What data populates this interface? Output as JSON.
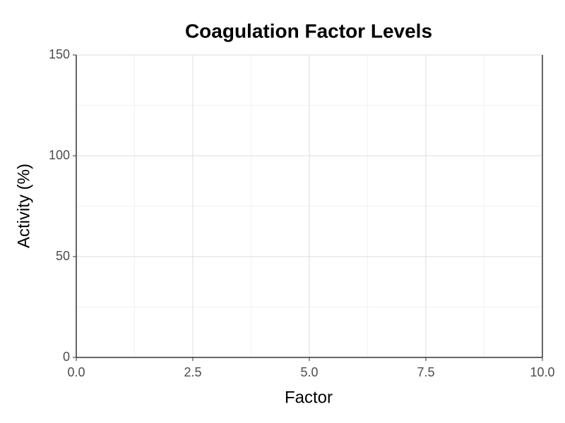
{
  "chart_data": {
    "type": "scatter",
    "title": "Coagulation Factor Levels",
    "xlabel": "Factor",
    "ylabel": "Activity (%)",
    "xlim": [
      0,
      10
    ],
    "ylim": [
      0,
      150
    ],
    "xticks": [
      {
        "value": 0,
        "label": "0.0"
      },
      2.5,
      {
        "value": 5,
        "label": "5.0"
      },
      7.5,
      {
        "value": 10,
        "label": "10.0"
      }
    ],
    "yticks": [
      0,
      50,
      100,
      150
    ],
    "grid": true
  }
}
